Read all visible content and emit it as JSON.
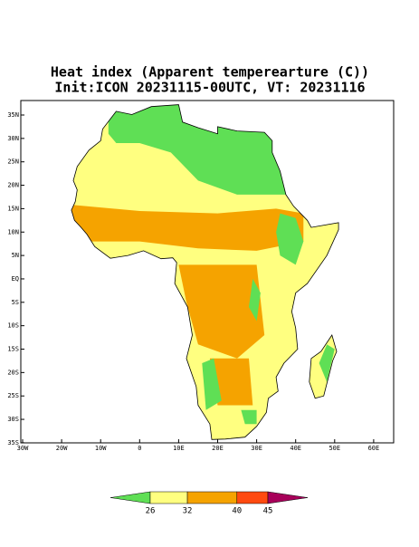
{
  "header": {
    "title": "Heat index (Apparent temperearture (C))",
    "subtitle": "Init:ICON 20231115-00UTC, VT: 20231116"
  },
  "map": {
    "lon_ticks": [
      {
        "value": -30,
        "label": "30W"
      },
      {
        "value": -20,
        "label": "20W"
      },
      {
        "value": -10,
        "label": "10W"
      },
      0,
      {
        "value": 10,
        "label": "10E"
      },
      {
        "value": 20,
        "label": "20E"
      },
      {
        "value": 30,
        "label": "30E"
      },
      {
        "value": 40,
        "label": "40E"
      },
      {
        "value": 50,
        "label": "50E"
      },
      {
        "value": 60,
        "label": "60E"
      }
    ],
    "lat_ticks": [
      {
        "value": 35,
        "label": "35N"
      },
      {
        "value": 30,
        "label": "30N"
      },
      {
        "value": 25,
        "label": "25N"
      },
      {
        "value": 20,
        "label": "20N"
      },
      {
        "value": 15,
        "label": "15N"
      },
      {
        "value": 10,
        "label": "10N"
      },
      {
        "value": 5,
        "label": "5N"
      },
      {
        "value": 0,
        "label": "EQ"
      },
      {
        "value": -5,
        "label": "5S"
      },
      {
        "value": -10,
        "label": "10S"
      },
      {
        "value": -15,
        "label": "15S"
      },
      {
        "value": -20,
        "label": "20S"
      },
      {
        "value": -25,
        "label": "25S"
      },
      {
        "value": -30,
        "label": "30S"
      },
      {
        "value": -35,
        "label": "35S"
      }
    ]
  },
  "colorbar": {
    "levels": [
      26,
      32,
      40,
      45
    ],
    "colors": [
      "#5fdf55",
      "#ffff80",
      "#f5a300",
      "#ff4a10",
      "#a8005a"
    ]
  }
}
